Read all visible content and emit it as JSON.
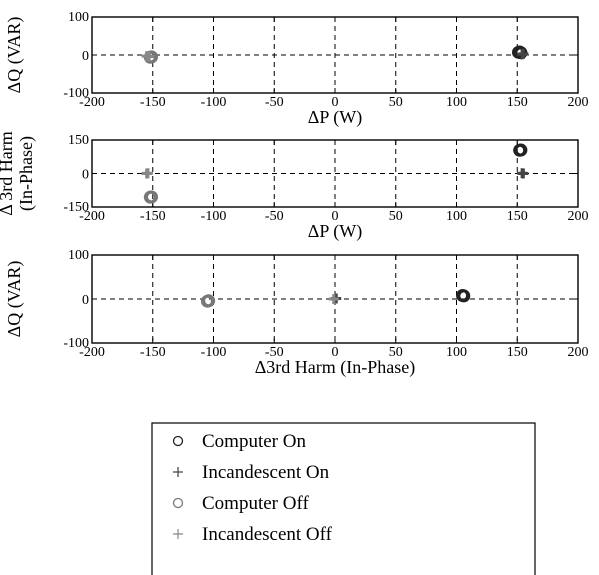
{
  "chart_data": [
    {
      "type": "scatter",
      "xlabel": "ΔP (W)",
      "ylabel": "ΔQ (VAR)",
      "xlim": [
        -200,
        200
      ],
      "ylim": [
        -100,
        100
      ],
      "xticks": [
        "-200",
        "-150",
        "-100",
        "-50",
        "0",
        "50",
        "100",
        "150",
        "200"
      ],
      "yticks": [
        "100",
        "0",
        "-100"
      ],
      "ytick_values": [
        100,
        0,
        -100
      ],
      "grid": true,
      "series": [
        {
          "name": "Computer On",
          "marker": "circle",
          "color": "#222222",
          "points": [
            {
              "x": 152,
              "y": 8
            },
            {
              "x": 153,
              "y": 6
            },
            {
              "x": 151,
              "y": 7
            }
          ]
        },
        {
          "name": "Incandescent On",
          "marker": "plus",
          "color": "#444444",
          "points": [
            {
              "x": 155,
              "y": 3
            },
            {
              "x": 154,
              "y": 2
            }
          ]
        },
        {
          "name": "Computer Off",
          "marker": "circle",
          "color": "#777777",
          "points": [
            {
              "x": -152,
              "y": -6
            },
            {
              "x": -151,
              "y": -5
            }
          ]
        },
        {
          "name": "Incandescent Off",
          "marker": "plus",
          "color": "#888888",
          "points": [
            {
              "x": -155,
              "y": -3
            },
            {
              "x": -153,
              "y": -4
            }
          ]
        }
      ]
    },
    {
      "type": "scatter",
      "xlabel": "ΔP (W)",
      "ylabel": "Δ 3rd Harm\n(In-Phase)",
      "xlim": [
        -200,
        200
      ],
      "ylim": [
        -150,
        150
      ],
      "xticks": [
        "-200",
        "-150",
        "-100",
        "-50",
        "0",
        "50",
        "100",
        "150",
        "200"
      ],
      "yticks": [
        "150",
        "0",
        "-150"
      ],
      "ytick_values": [
        150,
        0,
        -150
      ],
      "grid": true,
      "series": [
        {
          "name": "Computer On",
          "marker": "circle",
          "color": "#222222",
          "points": [
            {
              "x": 153,
              "y": 105
            },
            {
              "x": 152,
              "y": 104
            }
          ]
        },
        {
          "name": "Incandescent On",
          "marker": "plus",
          "color": "#444444",
          "points": [
            {
              "x": 155,
              "y": 0
            },
            {
              "x": 154,
              "y": 1
            }
          ]
        },
        {
          "name": "Computer Off",
          "marker": "circle",
          "color": "#777777",
          "points": [
            {
              "x": -152,
              "y": -106
            },
            {
              "x": -151,
              "y": -105
            }
          ]
        },
        {
          "name": "Incandescent Off",
          "marker": "plus",
          "color": "#888888",
          "points": [
            {
              "x": -155,
              "y": 0
            },
            {
              "x": -154,
              "y": 1
            }
          ]
        }
      ]
    },
    {
      "type": "scatter",
      "xlabel": "Δ3rd Harm (In-Phase)",
      "ylabel": "ΔQ (VAR)",
      "xlim": [
        -200,
        200
      ],
      "ylim": [
        -100,
        100
      ],
      "xticks": [
        "-200",
        "-150",
        "-100",
        "-50",
        "0",
        "50",
        "100",
        "150",
        "200"
      ],
      "yticks": [
        "100",
        "0",
        "-100"
      ],
      "ytick_values": [
        100,
        0,
        -100
      ],
      "grid": true,
      "series": [
        {
          "name": "Computer On",
          "marker": "circle",
          "color": "#222222",
          "points": [
            {
              "x": 105,
              "y": 8
            },
            {
              "x": 106,
              "y": 7
            }
          ]
        },
        {
          "name": "Incandescent On",
          "marker": "plus",
          "color": "#444444",
          "points": [
            {
              "x": 1,
              "y": 1
            }
          ]
        },
        {
          "name": "Computer Off",
          "marker": "circle",
          "color": "#777777",
          "points": [
            {
              "x": -105,
              "y": -5
            },
            {
              "x": -104,
              "y": -4
            }
          ]
        },
        {
          "name": "Incandescent Off",
          "marker": "plus",
          "color": "#888888",
          "points": [
            {
              "x": -1,
              "y": 0
            }
          ]
        }
      ]
    }
  ],
  "legend": {
    "placement": "bottom-center",
    "entries": [
      {
        "label": "Computer On",
        "marker": "circle",
        "color": "#222222"
      },
      {
        "label": "Incandescent On",
        "marker": "plus",
        "color": "#444444"
      },
      {
        "label": "Computer Off",
        "marker": "circle",
        "color": "#777777"
      },
      {
        "label": "Incandescent Off",
        "marker": "plus",
        "color": "#888888"
      }
    ]
  }
}
